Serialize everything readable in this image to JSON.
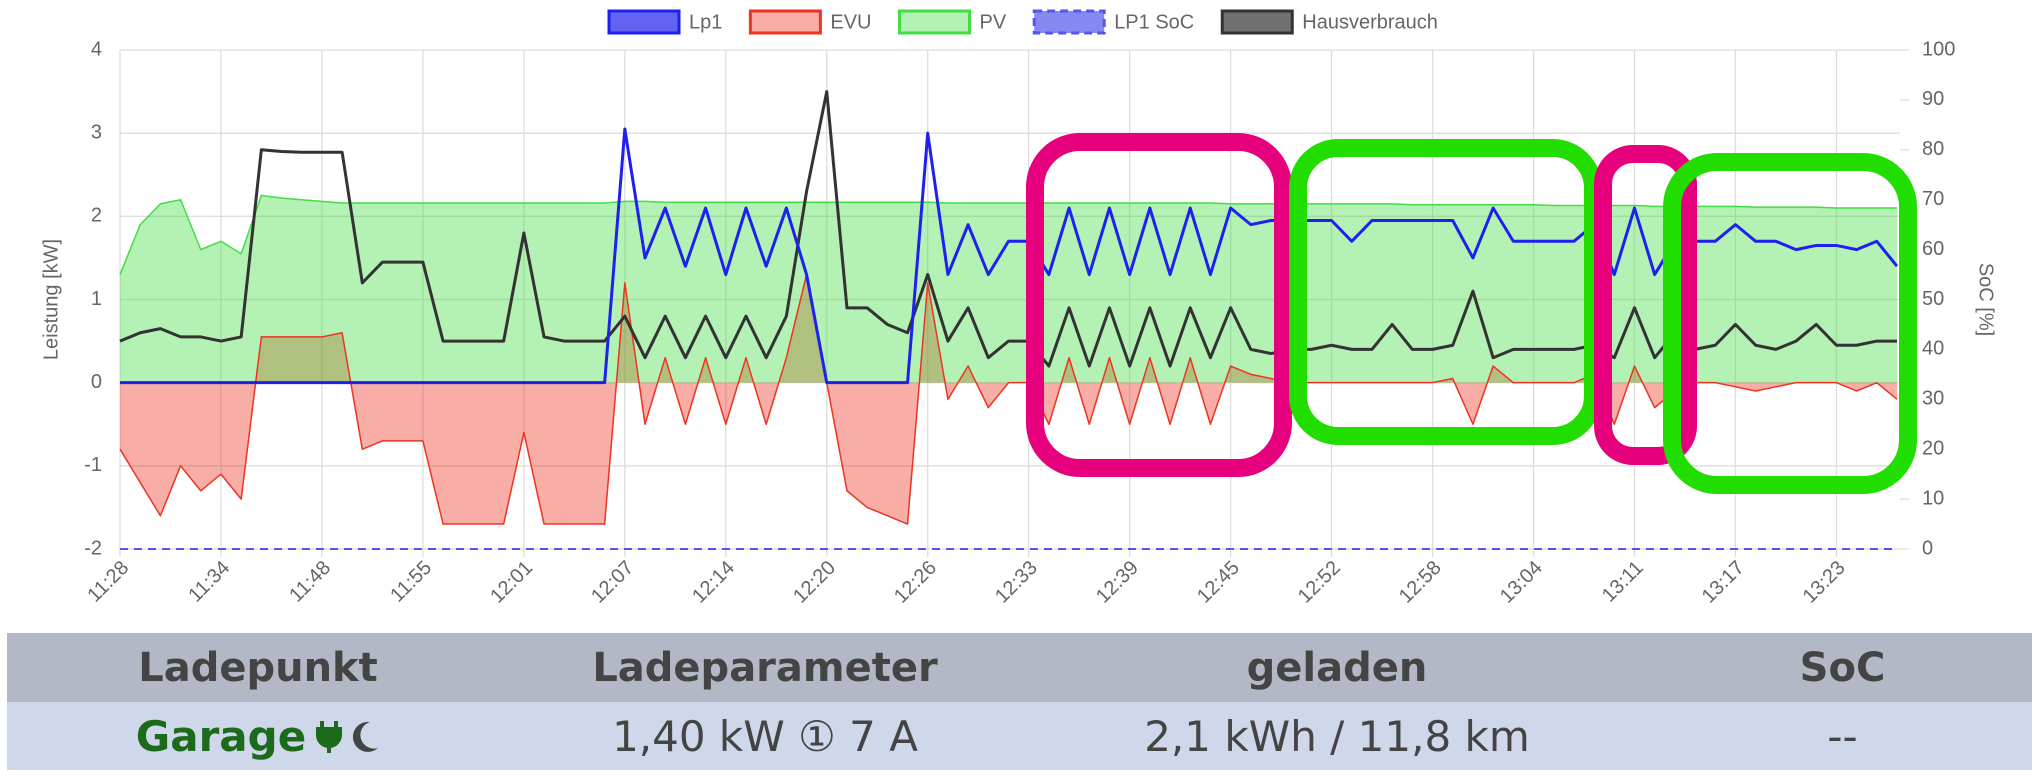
{
  "chart_data": {
    "type": "line",
    "categories": [
      "11:28",
      null,
      null,
      null,
      null,
      "11:34",
      null,
      null,
      null,
      null,
      "11:48",
      null,
      null,
      null,
      null,
      "11:55",
      null,
      null,
      null,
      null,
      "12:01",
      null,
      null,
      null,
      null,
      "12:07",
      null,
      null,
      null,
      null,
      "12:14",
      null,
      null,
      null,
      null,
      "12:20",
      null,
      null,
      null,
      null,
      "12:26",
      null,
      null,
      null,
      null,
      "12:33",
      null,
      null,
      null,
      null,
      "12:39",
      null,
      null,
      null,
      null,
      "12:45",
      null,
      null,
      null,
      null,
      "12:52",
      null,
      null,
      null,
      null,
      "12:58",
      null,
      null,
      null,
      null,
      "13:04",
      null,
      null,
      null,
      null,
      "13:11",
      null,
      null,
      null,
      null,
      "13:17",
      null,
      null,
      null,
      null,
      "13:23",
      null,
      null,
      null
    ],
    "y_label": "Leistung [kW]",
    "y2_label": "SoC [%]",
    "ylim": [
      -2,
      4
    ],
    "yticks": [
      -2,
      -1,
      0,
      1,
      2,
      3,
      4
    ],
    "y2lim": [
      0,
      100
    ],
    "y2ticks": [
      0,
      10,
      20,
      30,
      40,
      50,
      60,
      70,
      80,
      90,
      100
    ],
    "grid": true,
    "series": [
      {
        "name": "Lp1",
        "color": "#2020ee",
        "values": [
          0,
          0,
          0,
          0,
          0,
          0,
          0,
          0,
          0,
          0,
          0,
          0,
          0,
          0,
          0,
          0,
          0,
          0,
          0,
          0,
          0,
          0,
          0,
          0,
          0,
          3.05,
          1.5,
          2.1,
          1.4,
          2.1,
          1.3,
          2.1,
          1.4,
          2.1,
          1.3,
          0,
          0,
          0,
          0,
          0,
          3.0,
          1.3,
          1.9,
          1.3,
          1.7,
          1.7,
          1.3,
          2.1,
          1.3,
          2.1,
          1.3,
          2.1,
          1.3,
          2.1,
          1.3,
          2.1,
          1.9,
          1.95,
          1.95,
          1.95,
          1.95,
          1.7,
          1.95,
          1.95,
          1.95,
          1.95,
          1.95,
          1.5,
          2.1,
          1.7,
          1.7,
          1.7,
          1.7,
          1.9,
          1.3,
          2.1,
          1.3,
          1.7,
          1.7,
          1.7,
          1.9,
          1.7,
          1.7,
          1.6,
          1.65,
          1.65,
          1.6,
          1.7,
          1.4
        ]
      },
      {
        "name": "EVU",
        "color": "#ee3322",
        "fill": true,
        "values": [
          -0.8,
          -1.2,
          -1.6,
          -1.0,
          -1.3,
          -1.1,
          -1.4,
          0.55,
          0.55,
          0.55,
          0.55,
          0.6,
          -0.8,
          -0.7,
          -0.7,
          -0.7,
          -1.7,
          -1.7,
          -1.7,
          -1.7,
          -0.6,
          -1.7,
          -1.7,
          -1.7,
          -1.7,
          1.2,
          -0.5,
          0.3,
          -0.5,
          0.3,
          -0.5,
          0.3,
          -0.5,
          0.3,
          1.3,
          0,
          -1.3,
          -1.5,
          -1.6,
          -1.7,
          1.2,
          -0.2,
          0.2,
          -0.3,
          0,
          0,
          -0.5,
          0.3,
          -0.5,
          0.3,
          -0.5,
          0.3,
          -0.5,
          0.3,
          -0.5,
          0.2,
          0.1,
          0.05,
          0,
          0,
          0,
          0,
          0,
          0,
          0,
          0,
          0.05,
          -0.5,
          0.2,
          0,
          0,
          0,
          0,
          0.1,
          -0.5,
          0.2,
          -0.3,
          -0.1,
          0,
          0,
          -0.05,
          -0.1,
          -0.05,
          0,
          0,
          0,
          -0.1,
          0,
          -0.2
        ]
      },
      {
        "name": "PV",
        "color": "#44dd44",
        "fill": true,
        "values": [
          1.3,
          1.9,
          2.15,
          2.2,
          1.6,
          1.7,
          1.55,
          2.25,
          2.22,
          2.2,
          2.18,
          2.16,
          2.16,
          2.16,
          2.16,
          2.16,
          2.16,
          2.16,
          2.16,
          2.16,
          2.16,
          2.16,
          2.16,
          2.16,
          2.16,
          2.18,
          2.18,
          2.17,
          2.17,
          2.17,
          2.17,
          2.17,
          2.17,
          2.17,
          2.17,
          2.17,
          2.17,
          2.17,
          2.17,
          2.17,
          2.17,
          2.16,
          2.16,
          2.16,
          2.16,
          2.16,
          2.16,
          2.16,
          2.16,
          2.16,
          2.16,
          2.16,
          2.16,
          2.16,
          2.16,
          2.15,
          2.15,
          2.15,
          2.15,
          2.15,
          2.15,
          2.15,
          2.15,
          2.15,
          2.14,
          2.14,
          2.14,
          2.14,
          2.14,
          2.14,
          2.14,
          2.13,
          2.13,
          2.13,
          2.13,
          2.13,
          2.12,
          2.12,
          2.12,
          2.12,
          2.12,
          2.11,
          2.11,
          2.11,
          2.11,
          2.1,
          2.1,
          2.1,
          2.1
        ]
      },
      {
        "name": "LP1 SoC",
        "color": "#5555ee",
        "dash": true,
        "axis": "y2",
        "values": [
          0,
          0,
          0,
          0,
          0,
          0,
          0,
          0,
          0,
          0,
          0,
          0,
          0,
          0,
          0,
          0,
          0,
          0,
          0,
          0,
          0,
          0,
          0,
          0,
          0,
          0,
          0,
          0,
          0,
          0,
          0,
          0,
          0,
          0,
          0,
          0,
          0,
          0,
          0,
          0,
          0,
          0,
          0,
          0,
          0,
          0,
          0,
          0,
          0,
          0,
          0,
          0,
          0,
          0,
          0,
          0,
          0,
          0,
          0,
          0,
          0,
          0,
          0,
          0,
          0,
          0,
          0,
          0,
          0,
          0,
          0,
          0,
          0,
          0,
          0,
          0,
          0,
          0,
          0,
          0,
          0,
          0,
          0,
          0,
          0,
          0,
          0,
          0,
          0
        ]
      },
      {
        "name": "Hausverbrauch",
        "color": "#333333",
        "values": [
          0.5,
          0.6,
          0.65,
          0.55,
          0.55,
          0.5,
          0.55,
          2.8,
          2.78,
          2.77,
          2.77,
          2.77,
          1.2,
          1.45,
          1.45,
          1.45,
          0.5,
          0.5,
          0.5,
          0.5,
          1.8,
          0.55,
          0.5,
          0.5,
          0.5,
          0.8,
          0.3,
          0.8,
          0.3,
          0.8,
          0.3,
          0.8,
          0.3,
          0.8,
          2.3,
          3.5,
          0.9,
          0.9,
          0.7,
          0.6,
          1.3,
          0.5,
          0.9,
          0.3,
          0.5,
          0.5,
          0.2,
          0.9,
          0.2,
          0.9,
          0.2,
          0.9,
          0.2,
          0.9,
          0.3,
          0.9,
          0.4,
          0.35,
          0.4,
          0.4,
          0.45,
          0.4,
          0.4,
          0.7,
          0.4,
          0.4,
          0.45,
          1.1,
          0.3,
          0.4,
          0.4,
          0.4,
          0.4,
          0.45,
          0.3,
          0.9,
          0.3,
          0.6,
          0.4,
          0.45,
          0.7,
          0.45,
          0.4,
          0.5,
          0.7,
          0.45,
          0.45,
          0.5,
          0.5
        ]
      }
    ]
  },
  "table": {
    "headers": [
      "Ladepunkt",
      "Ladeparameter",
      "geladen",
      "SoC"
    ],
    "rows": [
      [
        "Garage",
        "1,40 kW ① 7 A",
        "2,1 kWh / 11,8 km",
        "--"
      ]
    ]
  }
}
